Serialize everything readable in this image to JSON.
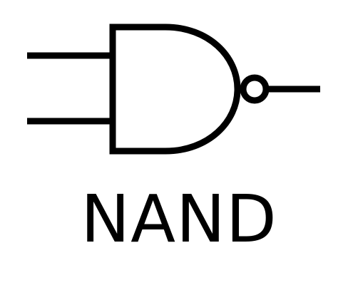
{
  "gate": {
    "label": "NAND",
    "icon": "nand-gate-icon",
    "stroke_color": "#000000",
    "background_color": "#ffffff"
  }
}
